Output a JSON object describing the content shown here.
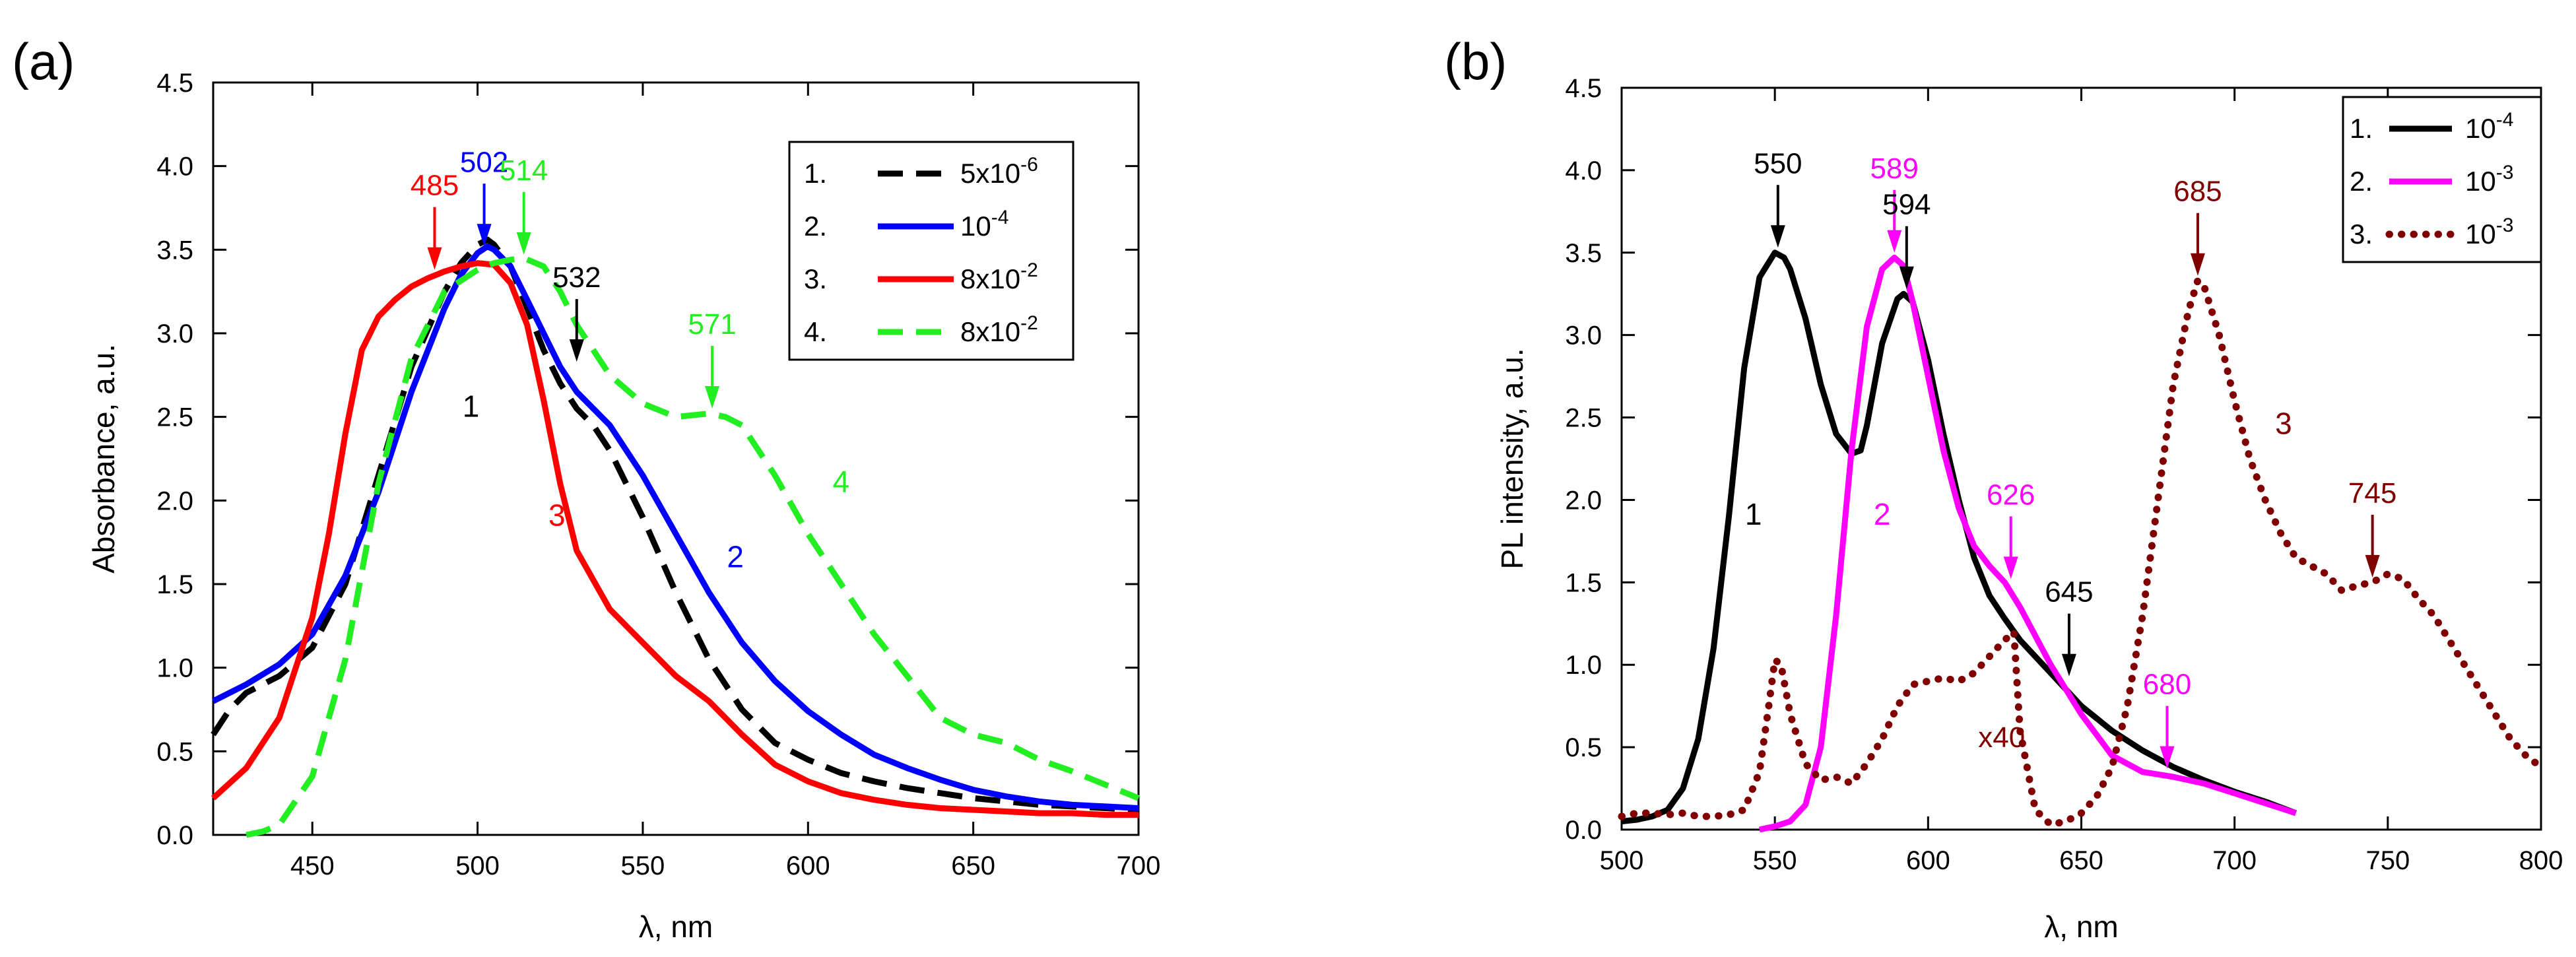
{
  "chart_data": [
    {
      "panel": "(a)",
      "type": "line",
      "xlabel": "λ, nm",
      "ylabel": "Absorbance, a.u.",
      "xlim": [
        420,
        700
      ],
      "ylim": [
        0,
        4.5
      ],
      "xticks": [
        450,
        500,
        550,
        600,
        650,
        700
      ],
      "yticks": [
        0.0,
        0.5,
        1.0,
        1.5,
        2.0,
        2.5,
        3.0,
        3.5,
        4.0,
        4.5
      ],
      "grid": false,
      "legend": {
        "placement": "top-right"
      },
      "series": [
        {
          "id": "1",
          "legend_num": "1.",
          "legend_base": "5x10",
          "legend_exp": "-6",
          "color": "#000000",
          "style": "dashed",
          "curve_label": "1",
          "curve_label_at": [
            498,
            2.5
          ],
          "x": [
            420,
            425,
            430,
            440,
            450,
            460,
            470,
            480,
            490,
            495,
            500,
            503,
            505,
            510,
            515,
            520,
            525,
            530,
            535,
            540,
            550,
            560,
            570,
            580,
            590,
            600,
            610,
            620,
            630,
            640,
            650,
            660,
            670,
            680,
            690,
            700
          ],
          "y": [
            0.6,
            0.75,
            0.85,
            0.95,
            1.12,
            1.5,
            2.15,
            2.8,
            3.25,
            3.42,
            3.53,
            3.56,
            3.53,
            3.4,
            3.15,
            2.9,
            2.7,
            2.55,
            2.45,
            2.3,
            1.9,
            1.45,
            1.05,
            0.75,
            0.55,
            0.45,
            0.37,
            0.32,
            0.28,
            0.25,
            0.22,
            0.2,
            0.18,
            0.17,
            0.16,
            0.15
          ]
        },
        {
          "id": "2",
          "legend_num": "2.",
          "legend_base": "10",
          "legend_exp": "-4",
          "color": "#0000ff",
          "style": "solid",
          "curve_label": "2",
          "curve_label_at": [
            578,
            1.6
          ],
          "x": [
            420,
            430,
            440,
            450,
            460,
            470,
            480,
            490,
            495,
            500,
            503,
            505,
            510,
            515,
            520,
            525,
            530,
            540,
            550,
            560,
            570,
            580,
            590,
            600,
            610,
            620,
            630,
            640,
            650,
            660,
            670,
            680,
            690,
            700
          ],
          "y": [
            0.8,
            0.9,
            1.02,
            1.2,
            1.55,
            2.05,
            2.65,
            3.15,
            3.35,
            3.48,
            3.52,
            3.5,
            3.4,
            3.2,
            3.0,
            2.8,
            2.65,
            2.45,
            2.15,
            1.8,
            1.45,
            1.15,
            0.92,
            0.74,
            0.6,
            0.48,
            0.4,
            0.33,
            0.27,
            0.23,
            0.2,
            0.18,
            0.17,
            0.16
          ]
        },
        {
          "id": "3",
          "legend_num": "3.",
          "legend_base": "8x10",
          "legend_exp": "-2",
          "color": "#ff0000",
          "style": "solid",
          "curve_label": "3",
          "curve_label_at": [
            524,
            1.85
          ],
          "x": [
            420,
            430,
            440,
            450,
            455,
            460,
            465,
            470,
            475,
            480,
            485,
            490,
            495,
            500,
            505,
            510,
            515,
            520,
            525,
            530,
            540,
            550,
            560,
            570,
            580,
            590,
            600,
            610,
            620,
            630,
            640,
            650,
            660,
            670,
            680,
            690,
            700
          ],
          "y": [
            0.22,
            0.4,
            0.7,
            1.3,
            1.8,
            2.4,
            2.9,
            3.1,
            3.2,
            3.28,
            3.33,
            3.37,
            3.4,
            3.42,
            3.41,
            3.3,
            3.05,
            2.6,
            2.1,
            1.7,
            1.35,
            1.15,
            0.95,
            0.8,
            0.6,
            0.42,
            0.32,
            0.25,
            0.21,
            0.18,
            0.16,
            0.15,
            0.14,
            0.13,
            0.13,
            0.12,
            0.12
          ]
        },
        {
          "id": "4",
          "legend_num": "4.",
          "legend_base": "8x10",
          "legend_exp": "-2",
          "color": "#22ee22",
          "style": "dashed",
          "curve_label": "4",
          "curve_label_at": [
            610,
            2.05
          ],
          "x": [
            430,
            435,
            440,
            450,
            460,
            470,
            480,
            490,
            500,
            505,
            510,
            514,
            520,
            525,
            530,
            540,
            550,
            560,
            570,
            575,
            580,
            590,
            600,
            610,
            620,
            630,
            640,
            650,
            660,
            670,
            680,
            690,
            700
          ],
          "y": [
            0.0,
            0.02,
            0.06,
            0.35,
            1.05,
            2.1,
            2.85,
            3.25,
            3.38,
            3.42,
            3.44,
            3.45,
            3.4,
            3.25,
            3.05,
            2.75,
            2.58,
            2.5,
            2.52,
            2.5,
            2.45,
            2.15,
            1.8,
            1.5,
            1.2,
            0.95,
            0.7,
            0.6,
            0.55,
            0.45,
            0.38,
            0.3,
            0.22
          ]
        }
      ],
      "annotations": [
        {
          "text": "485",
          "x": 487,
          "y": 3.38,
          "color": "#ff0000"
        },
        {
          "text": "502",
          "x": 502,
          "y": 3.52,
          "color": "#0000ff"
        },
        {
          "text": "514",
          "x": 514,
          "y": 3.47,
          "color": "#22ee22"
        },
        {
          "text": "532",
          "x": 530,
          "y": 2.83,
          "color": "#000000"
        },
        {
          "text": "571",
          "x": 571,
          "y": 2.55,
          "color": "#22ee22"
        }
      ]
    },
    {
      "panel": "(b)",
      "type": "line",
      "xlabel": "λ, nm",
      "ylabel": "PL intensity, a.u.",
      "xlim": [
        500,
        800
      ],
      "ylim": [
        0,
        4.5
      ],
      "xticks": [
        500,
        550,
        600,
        650,
        700,
        750,
        800
      ],
      "yticks": [
        0.0,
        0.5,
        1.0,
        1.5,
        2.0,
        2.5,
        3.0,
        3.5,
        4.0,
        4.5
      ],
      "grid": false,
      "legend": {
        "placement": "top-right"
      },
      "series": [
        {
          "id": "1",
          "legend_num": "1.",
          "legend_base": "10",
          "legend_exp": "-4",
          "color": "#000000",
          "style": "solid",
          "curve_label": "1",
          "curve_label_at": [
            543,
            1.85
          ],
          "x": [
            500,
            505,
            510,
            515,
            520,
            525,
            530,
            535,
            540,
            545,
            550,
            553,
            555,
            560,
            565,
            570,
            575,
            578,
            580,
            585,
            590,
            592,
            595,
            600,
            605,
            610,
            615,
            620,
            625,
            630,
            640,
            650,
            660,
            670,
            680,
            690,
            700,
            710,
            720
          ],
          "y": [
            0.05,
            0.06,
            0.08,
            0.12,
            0.25,
            0.55,
            1.1,
            1.9,
            2.8,
            3.35,
            3.5,
            3.47,
            3.4,
            3.1,
            2.7,
            2.4,
            2.28,
            2.3,
            2.45,
            2.95,
            3.22,
            3.25,
            3.2,
            2.85,
            2.4,
            2.0,
            1.65,
            1.42,
            1.28,
            1.15,
            0.95,
            0.75,
            0.6,
            0.48,
            0.38,
            0.3,
            0.23,
            0.17,
            0.1
          ]
        },
        {
          "id": "2",
          "legend_num": "2.",
          "legend_base": "10",
          "legend_exp": "-3",
          "color": "#ff00ff",
          "style": "solid",
          "curve_label": "2",
          "curve_label_at": [
            585,
            1.85
          ],
          "x": [
            545,
            550,
            555,
            560,
            565,
            570,
            575,
            580,
            585,
            589,
            592,
            595,
            600,
            605,
            610,
            615,
            620,
            625,
            630,
            640,
            650,
            660,
            670,
            680,
            690,
            700,
            710,
            720
          ],
          "y": [
            0.0,
            0.02,
            0.05,
            0.15,
            0.5,
            1.3,
            2.3,
            3.05,
            3.4,
            3.47,
            3.42,
            3.2,
            2.75,
            2.3,
            1.95,
            1.72,
            1.6,
            1.5,
            1.35,
            1.0,
            0.7,
            0.45,
            0.35,
            0.32,
            0.28,
            0.22,
            0.16,
            0.1
          ]
        },
        {
          "id": "3",
          "legend_num": "3.",
          "legend_base": "10",
          "legend_exp": "-3",
          "color": "#800000",
          "style": "dotted",
          "curve_label": "3",
          "curve_label_at": [
            716,
            2.4
          ],
          "x": [
            500,
            505,
            510,
            515,
            520,
            525,
            530,
            535,
            540,
            545,
            548,
            550,
            552,
            555,
            560,
            565,
            570,
            575,
            580,
            585,
            590,
            595,
            600,
            605,
            610,
            615,
            620,
            625,
            628,
            630,
            635,
            640,
            645,
            650,
            655,
            660,
            665,
            670,
            675,
            680,
            685,
            688,
            690,
            695,
            700,
            705,
            710,
            715,
            720,
            725,
            730,
            735,
            740,
            745,
            750,
            755,
            760,
            765,
            770,
            775,
            780,
            785,
            790,
            795,
            800
          ],
          "y": [
            0.08,
            0.1,
            0.1,
            0.09,
            0.1,
            0.08,
            0.08,
            0.09,
            0.12,
            0.35,
            0.75,
            1.03,
            1.0,
            0.7,
            0.4,
            0.3,
            0.32,
            0.28,
            0.4,
            0.55,
            0.75,
            0.88,
            0.9,
            0.92,
            0.9,
            0.95,
            1.05,
            1.15,
            1.2,
            0.6,
            0.12,
            0.03,
            0.05,
            0.1,
            0.2,
            0.38,
            0.75,
            1.3,
            2.0,
            2.7,
            3.15,
            3.33,
            3.3,
            3.0,
            2.6,
            2.25,
            2.0,
            1.8,
            1.65,
            1.6,
            1.55,
            1.45,
            1.48,
            1.5,
            1.55,
            1.52,
            1.4,
            1.3,
            1.15,
            1.0,
            0.85,
            0.7,
            0.55,
            0.45,
            0.38
          ]
        }
      ],
      "annotations": [
        {
          "text": "550",
          "x": 551,
          "y": 3.53,
          "color": "#000000"
        },
        {
          "text": "589",
          "x": 589,
          "y": 3.5,
          "color": "#ff00ff"
        },
        {
          "text": "594",
          "x": 593,
          "y": 3.28,
          "color": "#000000"
        },
        {
          "text": "685",
          "x": 688,
          "y": 3.36,
          "color": "#800000"
        },
        {
          "text": "626",
          "x": 627,
          "y": 1.52,
          "color": "#ff00ff"
        },
        {
          "text": "645",
          "x": 646,
          "y": 0.93,
          "color": "#000000"
        },
        {
          "text": "680",
          "x": 678,
          "y": 0.37,
          "color": "#ff00ff"
        },
        {
          "text": "745",
          "x": 745,
          "y": 1.53,
          "color": "#800000"
        }
      ],
      "extra_labels": [
        {
          "text": "x40",
          "x": 624,
          "y": 0.5,
          "color": "#800000"
        }
      ]
    }
  ]
}
